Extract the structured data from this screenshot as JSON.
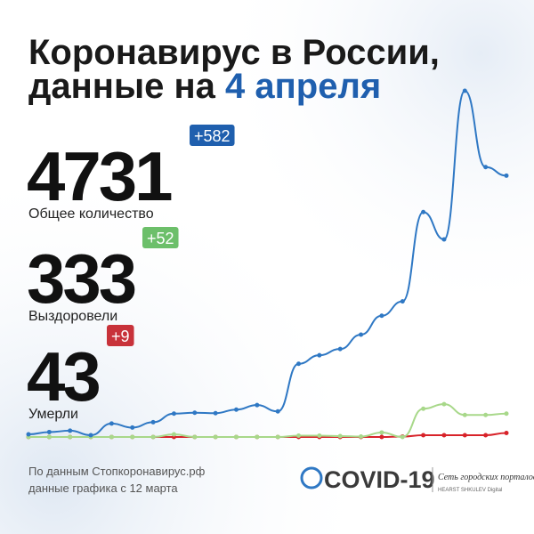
{
  "header": {
    "title_line1": "Коронавирус в России,",
    "title_line2": "данные на",
    "title_date": "4 апреля"
  },
  "stats": [
    {
      "value": "4731",
      "delta": "+582",
      "label": "Общее количество",
      "color": "#1f5fae"
    },
    {
      "value": "333",
      "delta": "+52",
      "label": "Выздоровели",
      "color": "#6cbf6a"
    },
    {
      "value": "43",
      "delta": "+9",
      "label": "Умерли",
      "color": "#c8323a"
    }
  ],
  "footer": {
    "source_line1": "По данным Стопкоронавирус.рф",
    "source_line2": "данные графика с 12 марта",
    "logo": "COVID-19",
    "network": "Сеть городских порталов",
    "brand": "HEARST SHKULEV Digital"
  },
  "chart_data": {
    "type": "line",
    "series": [
      {
        "color": "#2f78c4",
        "values": [
          6,
          11,
          14,
          4,
          30,
          21,
          33,
          52,
          54,
          53,
          61,
          71,
          57,
          163,
          182,
          196,
          228,
          270,
          302,
          501,
          440,
          771,
          601,
          582
        ]
      },
      {
        "color": "#a8d88a",
        "values": [
          0,
          0,
          0,
          0,
          0,
          0,
          0,
          6,
          0,
          0,
          0,
          0,
          0,
          3,
          3,
          2,
          1,
          10,
          0,
          63,
          73,
          49,
          49,
          52
        ]
      },
      {
        "color": "#d8232a",
        "values": [
          0,
          0,
          0,
          0,
          0,
          0,
          0,
          0,
          0,
          0,
          0,
          0,
          0,
          0,
          0,
          0,
          0,
          0,
          1,
          4,
          4,
          4,
          4,
          9
        ]
      }
    ]
  }
}
